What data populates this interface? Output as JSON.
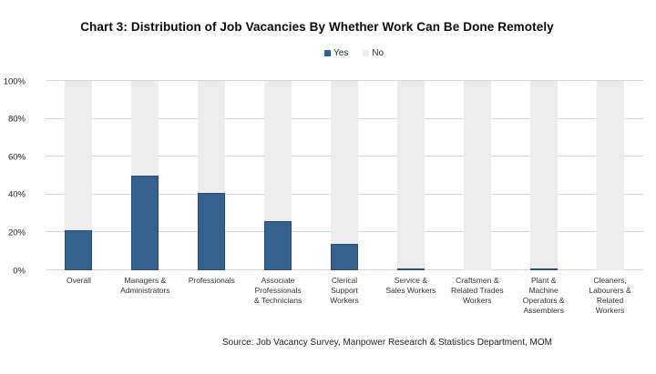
{
  "title": "Chart 3: Distribution of Job Vacancies By Whether Work Can Be Done Remotely",
  "legend": {
    "items": [
      {
        "label": "Yes",
        "color": "#35618e"
      },
      {
        "label": "No",
        "color": "#ececec"
      }
    ]
  },
  "source": "Source: Job Vacancy Survey, Manpower Research & Statistics Department, MOM",
  "colors": {
    "yes_bar": "#35618e",
    "yes_bar_border": "#2a527c",
    "no_bar": "#ececec",
    "gridline": "#d6d6d6",
    "title_text": "#0a0a0a"
  },
  "chart_data": {
    "type": "bar",
    "stacked_percent": true,
    "title": "Chart 3: Distribution of Job Vacancies By Whether Work Can Be Done Remotely",
    "categories": [
      "Overall",
      "Managers &\nAdministrators",
      "Professionals",
      "Associate\nProfessionals\n& Technicians",
      "Clerical\nSupport\nWorkers",
      "Service &\nSales Workers",
      "Craftsmen &\nRelated Trades\nWorkers",
      "Plant &\nMachine\nOperators &\nAssemblers",
      "Cleaners,\nLabourers &\nRelated\nWorkers"
    ],
    "series": [
      {
        "name": "Yes",
        "color": "#35618e",
        "values": [
          21,
          50,
          41,
          26,
          14,
          1,
          0,
          1,
          0
        ]
      },
      {
        "name": "No",
        "color": "#ececec",
        "values": [
          79,
          50,
          59,
          74,
          86,
          99,
          100,
          99,
          100
        ]
      }
    ],
    "xlabel": "",
    "ylabel": "",
    "ylim": [
      0,
      100
    ],
    "y_ticks": [
      "0%",
      "20%",
      "40%",
      "60%",
      "80%",
      "100%"
    ],
    "grid": true,
    "legend_position": "top",
    "source": "Source: Job Vacancy Survey, Manpower Research & Statistics Department, MOM"
  }
}
